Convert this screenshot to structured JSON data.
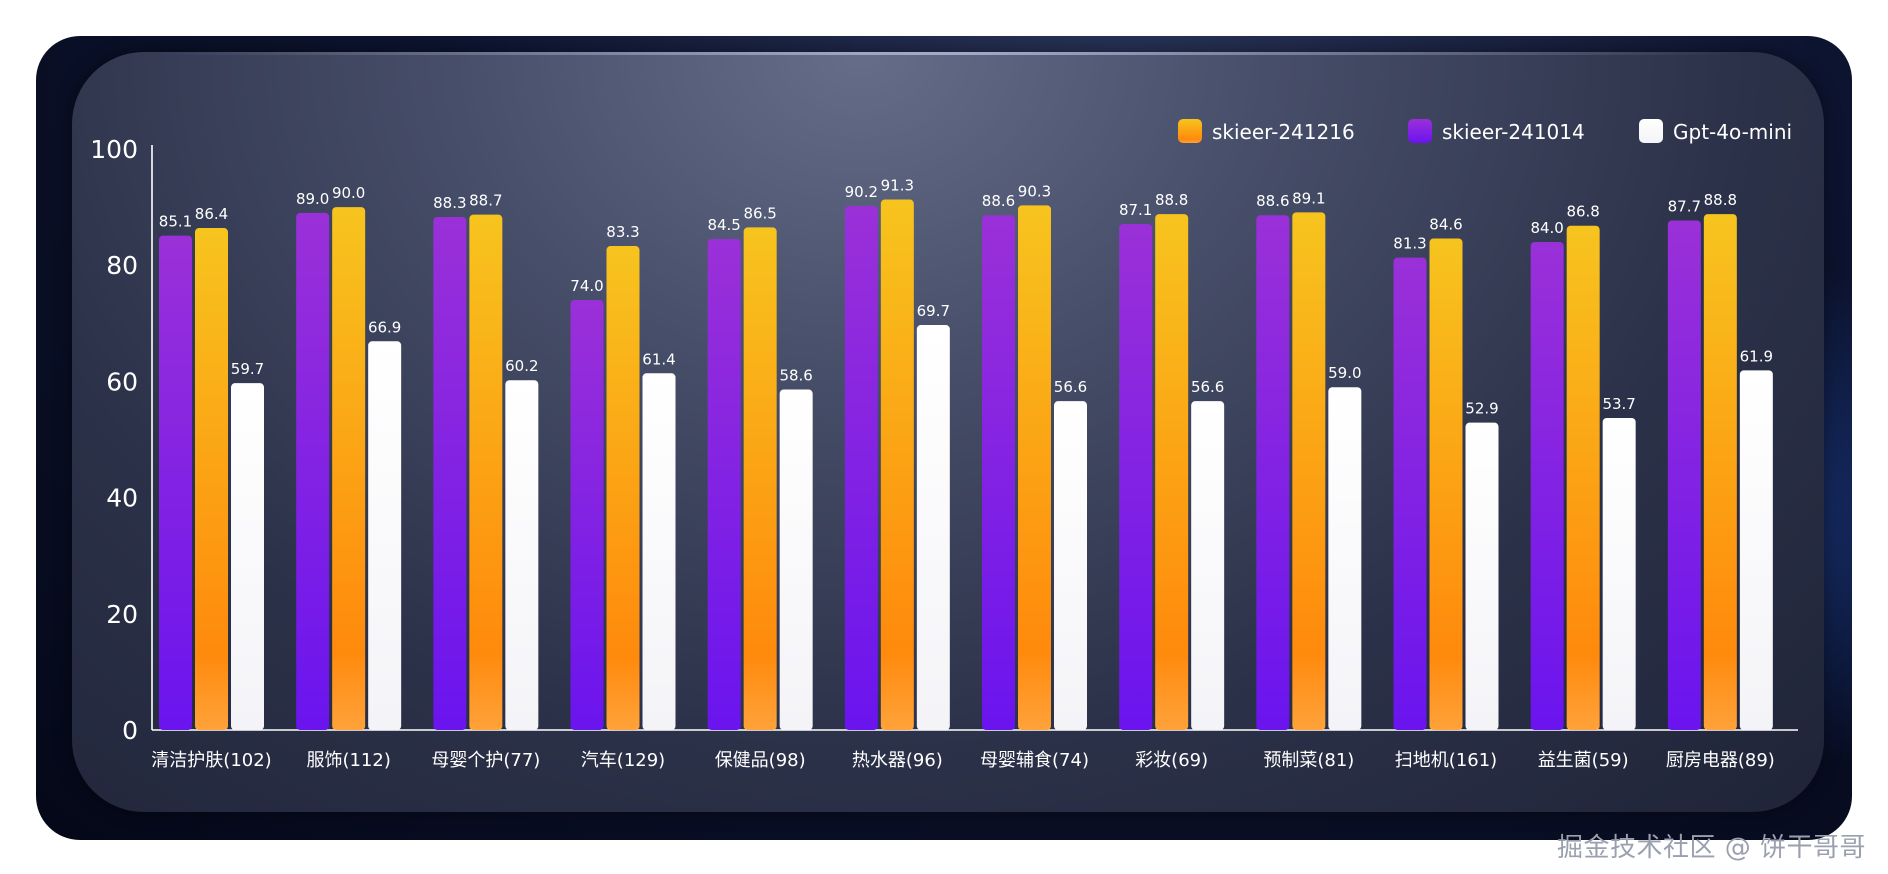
{
  "chart_data": {
    "type": "bar",
    "categories": [
      "清洁护肤(102)",
      "服饰(112)",
      "母婴个护(77)",
      "汽车(129)",
      "保健品(98)",
      "热水器(96)",
      "母婴辅食(74)",
      "彩妆(69)",
      "预制菜(81)",
      "扫地机(161)",
      "益生菌(59)",
      "厨房电器(89)"
    ],
    "series": [
      {
        "name": "skieer-241014",
        "color": "#8a2be2",
        "values": [
          85.1,
          89.0,
          88.3,
          74.0,
          84.5,
          90.2,
          88.6,
          87.1,
          88.6,
          81.3,
          84.0,
          87.7
        ]
      },
      {
        "name": "skieer-241216",
        "color": "#ff9a10",
        "values": [
          86.4,
          90.0,
          88.7,
          83.3,
          86.5,
          91.3,
          90.3,
          88.8,
          89.1,
          84.6,
          86.8,
          88.8
        ]
      },
      {
        "name": "Gpt-4o-mini",
        "color": "#ffffff",
        "values": [
          59.7,
          66.9,
          60.2,
          61.4,
          58.6,
          69.7,
          56.6,
          56.6,
          59.0,
          52.9,
          53.7,
          61.9
        ]
      }
    ],
    "legend_order": [
      "skieer-241216",
      "skieer-241014",
      "Gpt-4o-mini"
    ],
    "legend_position": "top-right",
    "ylim": [
      0,
      100
    ],
    "yticks": [
      "0",
      "20",
      "40",
      "60",
      "80",
      "100"
    ],
    "grid": false,
    "title": "",
    "xlabel": "",
    "ylabel": ""
  },
  "watermark": "掘金技术社区 @ 饼干哥哥"
}
